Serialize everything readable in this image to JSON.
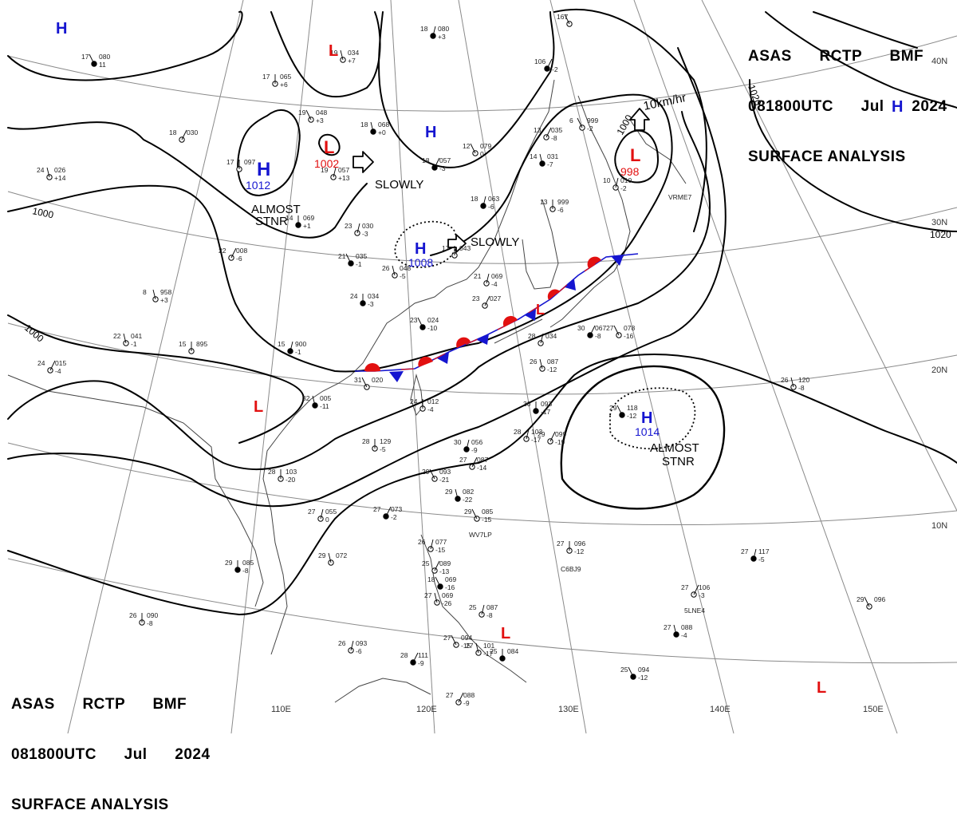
{
  "header": {
    "line1": "ASAS      RCTP      BMF",
    "line2": "081800UTC      Jul      2024",
    "line3": "SURFACE ANALYSIS"
  },
  "map": {
    "longitude_labels": [
      "110E",
      "120E",
      "130E",
      "140E",
      "150E"
    ],
    "latitude_labels": [
      "10N",
      "20N",
      "30N",
      "40N"
    ],
    "isobar_labels": [
      "1000",
      "1000",
      "1020",
      "1020",
      "1000"
    ],
    "highs": [
      {
        "letter": "H",
        "pressure": "",
        "note": ""
      },
      {
        "letter": "H",
        "pressure": "1012",
        "note": ""
      },
      {
        "letter": "H",
        "pressure": "",
        "note": ""
      },
      {
        "letter": "H",
        "pressure": "1008",
        "note": ""
      },
      {
        "letter": "H",
        "pressure": "1014",
        "note": ""
      },
      {
        "letter": "H",
        "pressure": "",
        "note": ""
      }
    ],
    "lows": [
      {
        "letter": "L",
        "pressure": ""
      },
      {
        "letter": "L",
        "pressure": "1002"
      },
      {
        "letter": "L",
        "pressure": "998"
      },
      {
        "letter": "L",
        "pressure": ""
      },
      {
        "letter": "L",
        "pressure": ""
      },
      {
        "letter": "L",
        "pressure": ""
      },
      {
        "letter": "L",
        "pressure": ""
      }
    ],
    "annotations": {
      "almost_stnr_1_a": "ALMOST",
      "almost_stnr_1_b": "STNR",
      "almost_stnr_2_a": "ALMOST",
      "almost_stnr_2_b": "STNR",
      "slowly_1": "SLOWLY",
      "slowly_2": "SLOWLY",
      "speed": "10km/hr"
    },
    "ship_callsigns": [
      "WV7LP",
      "C6BJ9",
      "5LNE4",
      "VRME7"
    ],
    "stations": [
      {
        "t": "17",
        "p": "080",
        "dp": "11"
      },
      {
        "t": "19",
        "p": "034",
        "dp": "+7"
      },
      {
        "t": "17",
        "p": "065",
        "dp": "+6"
      },
      {
        "t": "18",
        "p": "080",
        "dp": "+3"
      },
      {
        "t": "18",
        "p": "030",
        "dp": ""
      },
      {
        "t": "19",
        "p": "048",
        "dp": "+3"
      },
      {
        "t": "18",
        "p": "068",
        "dp": "+0"
      },
      {
        "t": "17",
        "p": "097",
        "dp": ""
      },
      {
        "t": "19",
        "p": "057",
        "dp": "+13"
      },
      {
        "t": "18",
        "p": "057",
        "dp": "-3"
      },
      {
        "t": "12",
        "p": "079",
        "dp": "0"
      },
      {
        "t": "24",
        "p": "026",
        "dp": "+14"
      },
      {
        "t": "14",
        "p": "069",
        "dp": "+1"
      },
      {
        "t": "23",
        "p": "030",
        "dp": "-3"
      },
      {
        "t": "22",
        "p": "008",
        "dp": "-6"
      },
      {
        "t": "21",
        "p": "035",
        "dp": "-1"
      },
      {
        "t": "26",
        "p": "048",
        "dp": "-5"
      },
      {
        "t": "17",
        "p": "043",
        "dp": ""
      },
      {
        "t": "18",
        "p": "063",
        "dp": "-6"
      },
      {
        "t": "13",
        "p": "035",
        "dp": "-8"
      },
      {
        "t": "6",
        "p": "999",
        "dp": "-2"
      },
      {
        "t": "14",
        "p": "031",
        "dp": "-7"
      },
      {
        "t": "13",
        "p": "999",
        "dp": "-6"
      },
      {
        "t": "10",
        "p": "010",
        "dp": "-2"
      },
      {
        "t": "106",
        "p": "",
        "dp": "-2"
      },
      {
        "t": "167",
        "p": "",
        "dp": ""
      },
      {
        "t": "8",
        "p": "958",
        "dp": "+3"
      },
      {
        "t": "24",
        "p": "034",
        "dp": "-3"
      },
      {
        "t": "21",
        "p": "069",
        "dp": "-4"
      },
      {
        "t": "23",
        "p": "027",
        "dp": ""
      },
      {
        "t": "23",
        "p": "024",
        "dp": "-10"
      },
      {
        "t": "22",
        "p": "041",
        "dp": "-1"
      },
      {
        "t": "15",
        "p": "895",
        "dp": ""
      },
      {
        "t": "15",
        "p": "900",
        "dp": "-1"
      },
      {
        "t": "24",
        "p": "015",
        "dp": "-4"
      },
      {
        "t": "31",
        "p": "020",
        "dp": ""
      },
      {
        "t": "32",
        "p": "005",
        "dp": "-11"
      },
      {
        "t": "24",
        "p": "012",
        "dp": "-4"
      },
      {
        "t": "28",
        "p": "034",
        "dp": ""
      },
      {
        "t": "30",
        "p": "067",
        "dp": "-8"
      },
      {
        "t": "27",
        "p": "078",
        "dp": "-16"
      },
      {
        "t": "26",
        "p": "087",
        "dp": "-12"
      },
      {
        "t": "30",
        "p": "093",
        "dp": "-17"
      },
      {
        "t": "28",
        "p": "103",
        "dp": "-17"
      },
      {
        "t": "29",
        "p": "099",
        "dp": "-19"
      },
      {
        "t": "29",
        "p": "118",
        "dp": "-12"
      },
      {
        "t": "26",
        "p": "120",
        "dp": "-8"
      },
      {
        "t": "28",
        "p": "129",
        "dp": "-5"
      },
      {
        "t": "30",
        "p": "056",
        "dp": "-9"
      },
      {
        "t": "27",
        "p": "087",
        "dp": "-14"
      },
      {
        "t": "29",
        "p": "093",
        "dp": "-21"
      },
      {
        "t": "29",
        "p": "082",
        "dp": "-22"
      },
      {
        "t": "28",
        "p": "103",
        "dp": "-20"
      },
      {
        "t": "27",
        "p": "055",
        "dp": "0"
      },
      {
        "t": "27",
        "p": "073",
        "dp": "-2"
      },
      {
        "t": "29",
        "p": "085",
        "dp": "-15"
      },
      {
        "t": "29",
        "p": "072",
        "dp": ""
      },
      {
        "t": "29",
        "p": "085",
        "dp": "-8"
      },
      {
        "t": "26",
        "p": "077",
        "dp": "-15"
      },
      {
        "t": "25",
        "p": "089",
        "dp": "-13"
      },
      {
        "t": "18",
        "p": "069",
        "dp": "-16"
      },
      {
        "t": "27",
        "p": "069",
        "dp": "-26"
      },
      {
        "t": "27",
        "p": "096",
        "dp": "-12"
      },
      {
        "t": "27",
        "p": "117",
        "dp": "-5"
      },
      {
        "t": "27",
        "p": "106",
        "dp": "-3"
      },
      {
        "t": "29",
        "p": "096",
        "dp": ""
      },
      {
        "t": "27",
        "p": "088",
        "dp": "-4"
      },
      {
        "t": "26",
        "p": "090",
        "dp": "-8"
      },
      {
        "t": "26",
        "p": "093",
        "dp": "-6"
      },
      {
        "t": "28",
        "p": "111",
        "dp": "-9"
      },
      {
        "t": "27",
        "p": "094",
        "dp": "-15"
      },
      {
        "t": "27",
        "p": "101",
        "dp": "-17"
      },
      {
        "t": "25",
        "p": "084",
        "dp": ""
      },
      {
        "t": "25",
        "p": "087",
        "dp": "-8"
      },
      {
        "t": "27",
        "p": "088",
        "dp": "-9"
      },
      {
        "t": "25",
        "p": "094",
        "dp": "-12"
      },
      {
        "t": "27",
        "p": "088",
        "dp": ""
      }
    ],
    "colors": {
      "isobar": "#000000",
      "high": "#1515d0",
      "low": "#e21010",
      "front_warm": "#e21010",
      "front_cold": "#1515d0",
      "grid": "#808080",
      "coast": "#404040"
    }
  }
}
